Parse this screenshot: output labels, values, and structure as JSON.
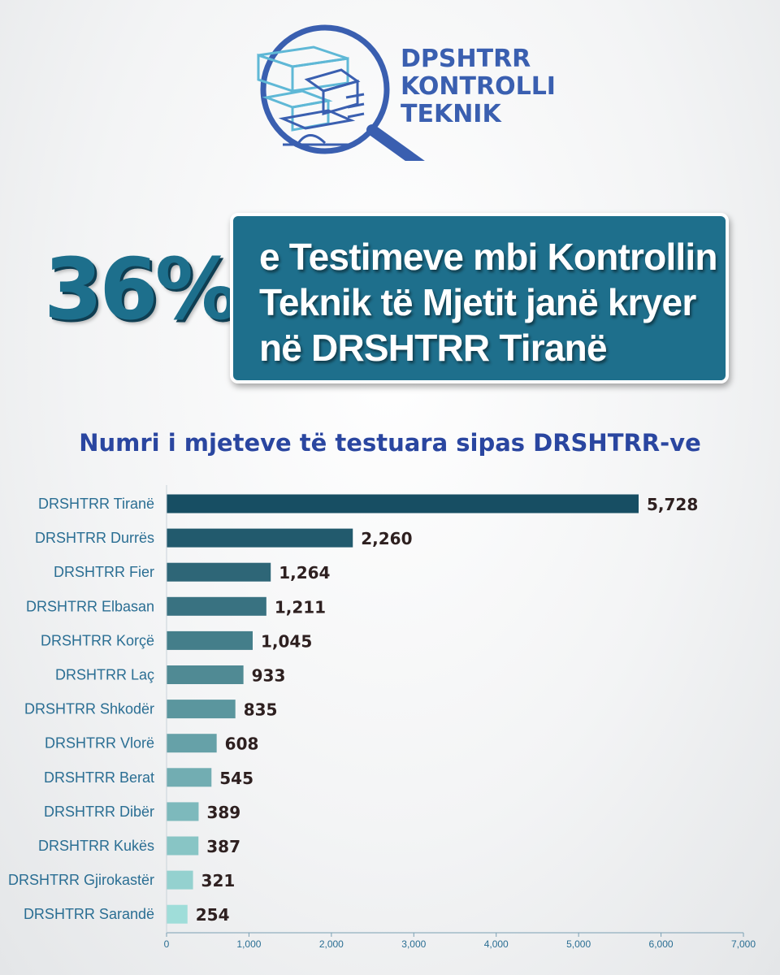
{
  "logo": {
    "lines": [
      "DPSHTRR",
      "KONTROLLI",
      "TEKNIK"
    ],
    "icon": "magnifier-blocks-icon"
  },
  "headline": {
    "percent": "36%",
    "lines": [
      "e Testimeve mbi Kontrollin",
      "Teknik të Mjetit janë kryer",
      "në DRSHTRR Tiranë"
    ]
  },
  "colors": {
    "accent": "#1e6f8c",
    "title": "#2a46a0",
    "logo": "#3a5fb0",
    "bar_start": "#174e63",
    "bar_end": "#9fddd9"
  },
  "chart_data": {
    "type": "bar",
    "orientation": "horizontal",
    "title": "Numri i mjeteve të testuara sipas DRSHTRR-ve",
    "categories": [
      "DRSHTRR Tiranë",
      "DRSHTRR Durrës",
      "DRSHTRR Fier",
      "DRSHTRR Elbasan",
      "DRSHTRR Korçë",
      "DRSHTRR Laç",
      "DRSHTRR Shkodër",
      "DRSHTRR Vlorë",
      "DRSHTRR Berat",
      "DRSHTRR Dibër",
      "DRSHTRR Kukës",
      "DRSHTRR Gjirokastër",
      "DRSHTRR Sarandë"
    ],
    "values": [
      5728,
      2260,
      1264,
      1211,
      1045,
      933,
      835,
      608,
      545,
      389,
      387,
      321,
      254
    ],
    "value_labels": [
      "5,728",
      "2,260",
      "1,264",
      "1,211",
      "1,045",
      "933",
      "835",
      "608",
      "545",
      "389",
      "387",
      "321",
      "254"
    ],
    "xlim": [
      0,
      7000
    ],
    "xticks": [
      0,
      1000,
      2000,
      3000,
      4000,
      5000,
      6000,
      7000
    ],
    "xtick_labels": [
      "0",
      "1,000",
      "2,000",
      "3,000",
      "4,000",
      "5,000",
      "6,000",
      "7,000"
    ],
    "grid": false,
    "legend": "none"
  }
}
